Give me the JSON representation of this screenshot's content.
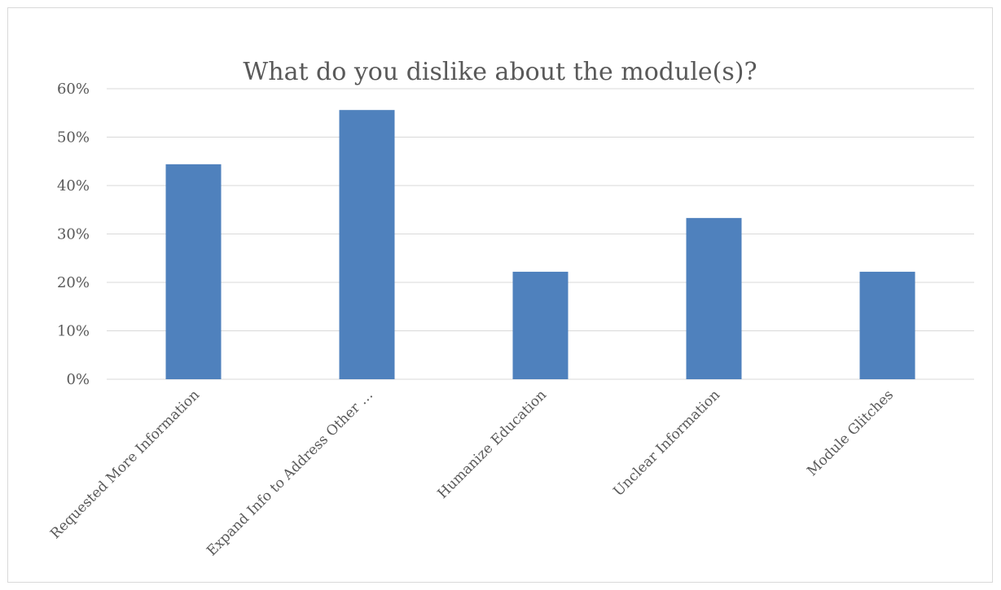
{
  "chart_data": {
    "type": "bar",
    "title": "What do you dislike about the module(s)?",
    "categories": [
      "Requested More Information",
      "Expand Info to Address Other …",
      "Humanize Education",
      "Unclear Information",
      "Module Glitches"
    ],
    "values": [
      0.444,
      0.556,
      0.222,
      0.333,
      0.222
    ],
    "ylim": [
      0,
      0.6
    ],
    "yticks": [
      {
        "value": 0,
        "label": "0%"
      },
      {
        "value": 0.1,
        "label": "10%"
      },
      {
        "value": 0.2,
        "label": "20%"
      },
      {
        "value": 0.3,
        "label": "30%"
      },
      {
        "value": 0.4,
        "label": "40%"
      },
      {
        "value": 0.5,
        "label": "50%"
      },
      {
        "value": 0.6,
        "label": "60%"
      }
    ],
    "xlabel": "",
    "ylabel": "",
    "grid": true,
    "legend": "none",
    "bar_color": "#4f81bd"
  }
}
